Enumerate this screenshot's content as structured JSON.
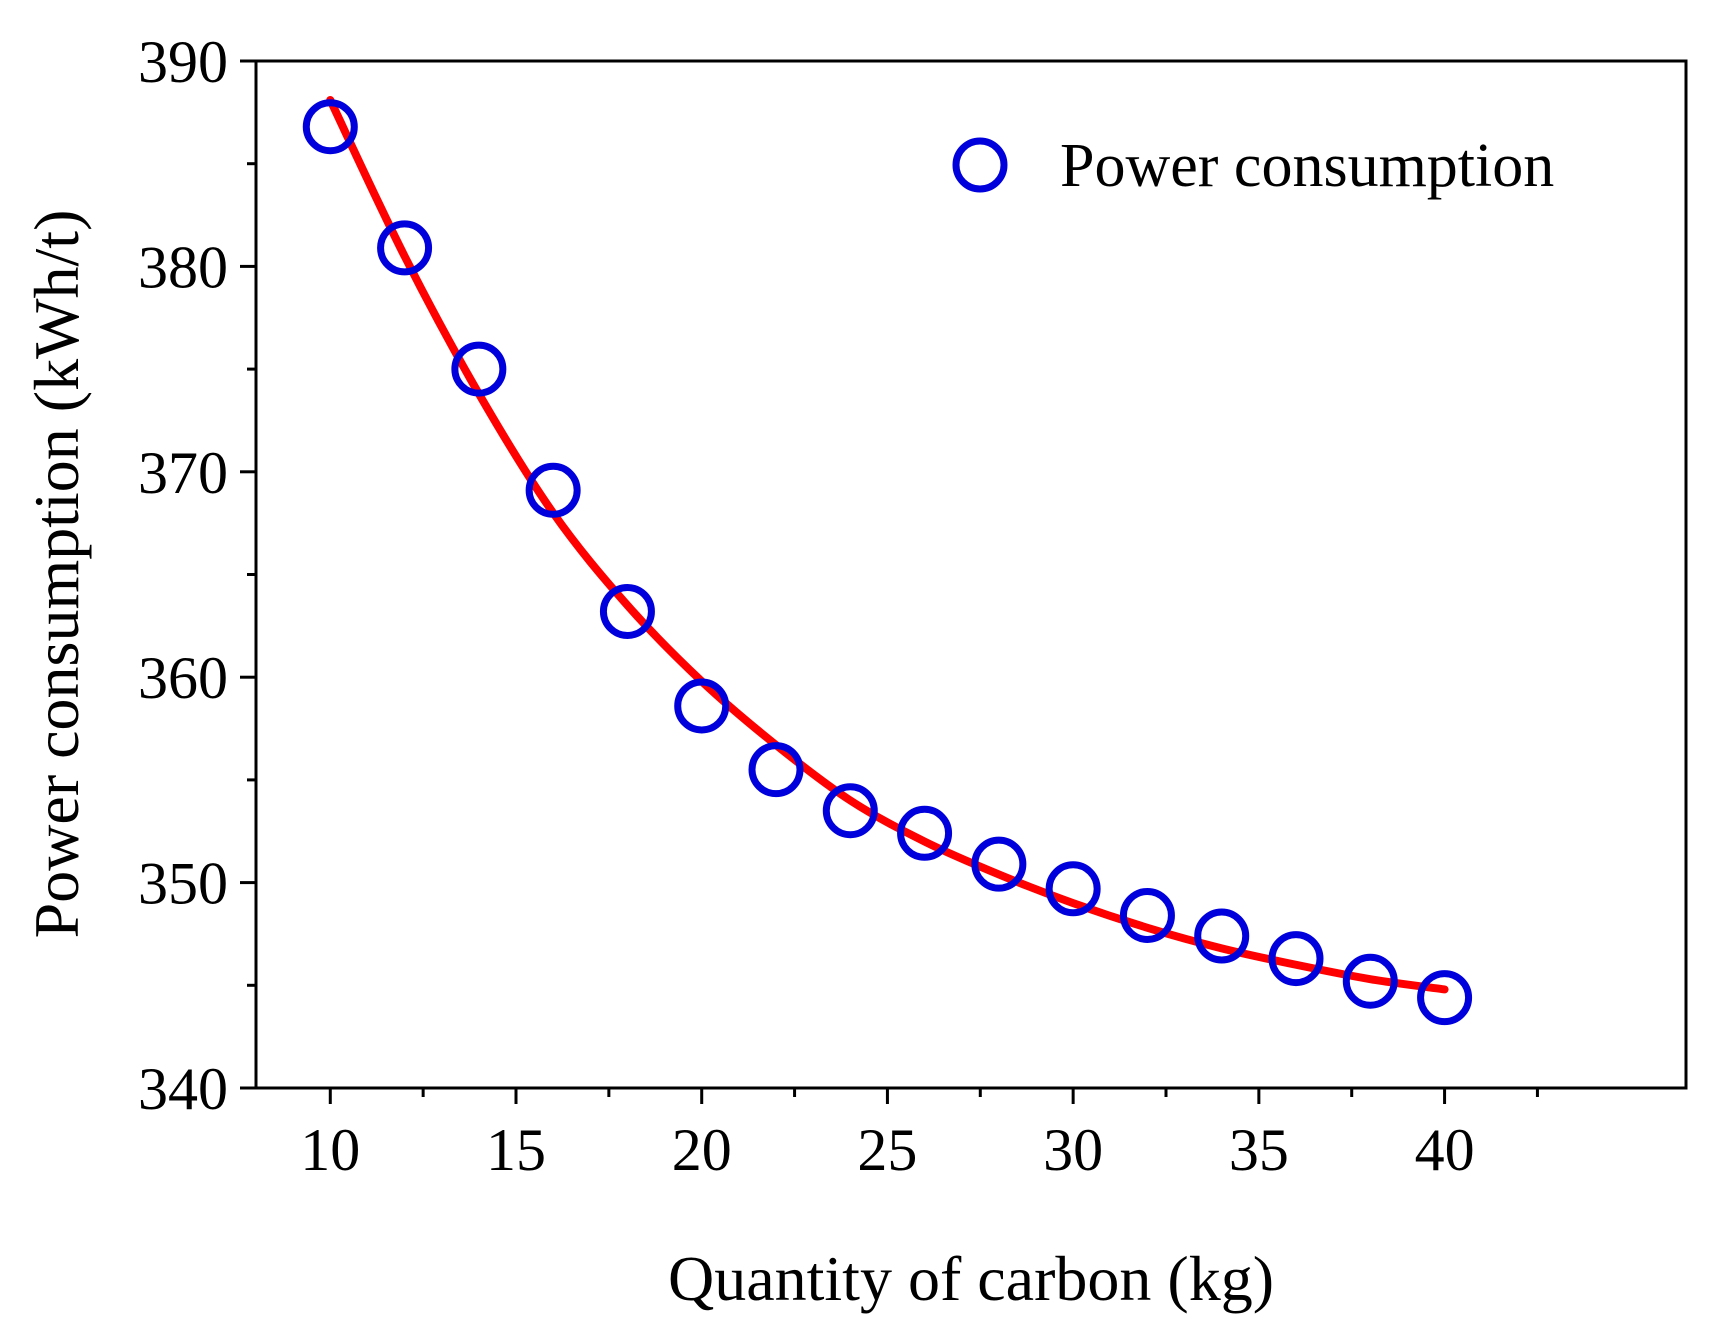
{
  "chart_data": {
    "type": "scatter",
    "xlabel": "Quantity of carbon (kg)",
    "ylabel": "Power consumption (kWh/t)",
    "xlim": [
      8,
      46.5
    ],
    "ylim": [
      340,
      390
    ],
    "xticks": [
      10,
      15,
      20,
      25,
      30,
      35,
      40
    ],
    "yticks": [
      340,
      350,
      360,
      370,
      380,
      390
    ],
    "x_minor_step": 2.5,
    "y_minor_step": 5,
    "grid": false,
    "legend_position": "top-right",
    "series": [
      {
        "name": "Power consumption",
        "kind": "scatter",
        "marker": "open-circle",
        "color": "#0000dd",
        "x": [
          10,
          12,
          14,
          16,
          18,
          20,
          22,
          24,
          26,
          28,
          30,
          32,
          34,
          36,
          38,
          40
        ],
        "y": [
          386.8,
          380.9,
          375.0,
          369.1,
          363.2,
          358.6,
          355.5,
          353.5,
          352.4,
          350.9,
          349.7,
          348.4,
          347.4,
          346.3,
          345.2,
          344.4
        ]
      },
      {
        "kind": "fit-line",
        "color": "#ff0000",
        "x": [
          10,
          12,
          14,
          16,
          18,
          20,
          22,
          24,
          26,
          28,
          30,
          32,
          34,
          36,
          38,
          40
        ],
        "y": [
          388.1,
          380.5,
          373.8,
          368.0,
          363.5,
          359.8,
          356.7,
          354.0,
          352.0,
          350.4,
          349.0,
          347.8,
          346.8,
          346.0,
          345.3,
          344.8
        ]
      }
    ]
  }
}
